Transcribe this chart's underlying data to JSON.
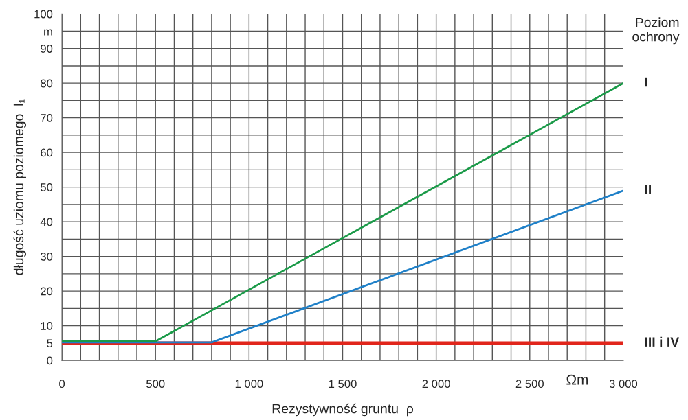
{
  "chart_data": {
    "type": "line",
    "xlabel": "Rezystywność gruntu  ρ",
    "ylabel": "długość uziomu poziomego  l₁",
    "series": [
      {
        "name": "III i IV",
        "color": "#e1251b",
        "x": [
          0,
          3000
        ],
        "values": [
          5,
          5
        ]
      },
      {
        "name": "II",
        "color": "#1f80c8",
        "x": [
          0,
          800,
          3000
        ],
        "values": [
          5.2,
          5.2,
          49
        ]
      },
      {
        "name": "I",
        "color": "#1a9a48",
        "x": [
          0,
          500,
          3000
        ],
        "values": [
          5.5,
          5.5,
          80
        ]
      }
    ],
    "xlim": [
      0,
      3000
    ],
    "xticks": [
      0,
      {
        "value": 100,
        "label": null
      },
      {
        "value": 200,
        "label": null
      },
      {
        "value": 300,
        "label": null
      },
      {
        "value": 400,
        "label": null
      },
      500,
      {
        "value": 600,
        "label": null
      },
      {
        "value": 700,
        "label": null
      },
      {
        "value": 800,
        "label": null
      },
      {
        "value": 900,
        "label": null
      },
      {
        "value": 1000,
        "label": "1 000"
      },
      {
        "value": 1100,
        "label": null
      },
      {
        "value": 1200,
        "label": null
      },
      {
        "value": 1300,
        "label": null
      },
      {
        "value": 1400,
        "label": null
      },
      {
        "value": 1500,
        "label": "1 500"
      },
      {
        "value": 1600,
        "label": null
      },
      {
        "value": 1700,
        "label": null
      },
      {
        "value": 1800,
        "label": null
      },
      {
        "value": 1900,
        "label": null
      },
      {
        "value": 2000,
        "label": "2 000"
      },
      {
        "value": 2100,
        "label": null
      },
      {
        "value": 2200,
        "label": null
      },
      {
        "value": 2300,
        "label": null
      },
      {
        "value": 2400,
        "label": null
      },
      {
        "value": 2500,
        "label": "2 500"
      },
      {
        "value": 2600,
        "label": null
      },
      {
        "value": 2700,
        "label": null
      },
      {
        "value": 2800,
        "label": null
      },
      {
        "value": 2900,
        "label": null
      },
      {
        "value": 3000,
        "label": "3 000"
      }
    ],
    "ylim": [
      0,
      100
    ],
    "yticks": [
      0,
      5,
      10,
      {
        "value": 15,
        "label": null
      },
      20,
      {
        "value": 25,
        "label": null
      },
      30,
      {
        "value": 35,
        "label": null
      },
      40,
      {
        "value": 45,
        "label": null
      },
      50,
      {
        "value": 55,
        "label": null
      },
      60,
      {
        "value": 65,
        "label": null
      },
      70,
      {
        "value": 75,
        "label": null
      },
      80,
      {
        "value": 85,
        "label": null
      },
      90,
      {
        "value": 95,
        "label": "m"
      },
      100
    ],
    "annotations": [
      "Ωm",
      "Poziom\nochrony"
    ],
    "grid": true,
    "legend": false,
    "marker": "none",
    "line_style": "solid"
  }
}
